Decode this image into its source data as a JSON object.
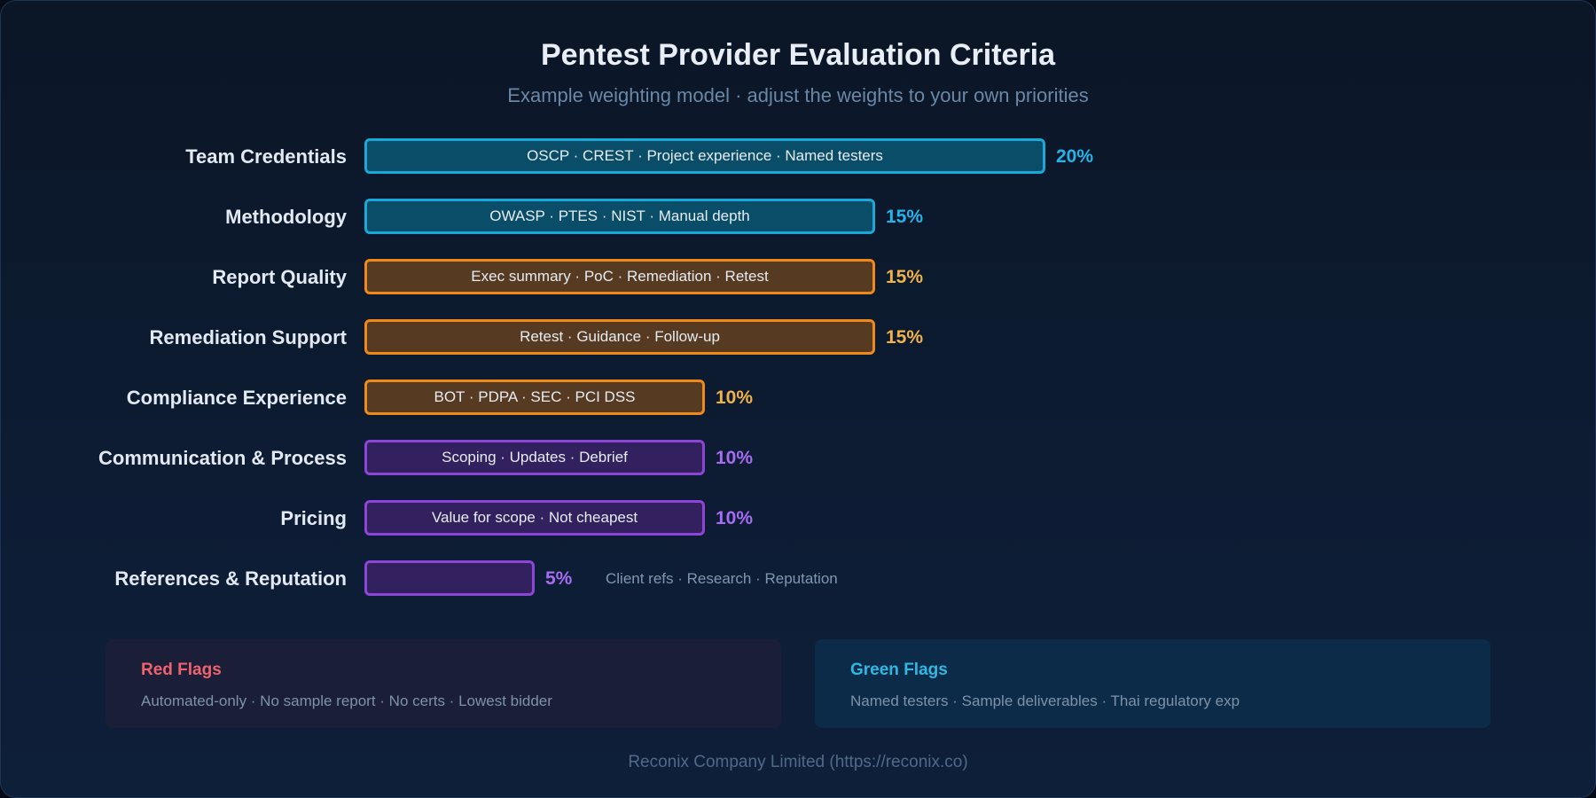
{
  "title": "Pentest Provider Evaluation Criteria",
  "subtitle": "Example weighting model · adjust the weights to your own priorities",
  "chart_data": {
    "type": "bar",
    "orientation": "horizontal",
    "categories": [
      "Team Credentials",
      "Methodology",
      "Report Quality",
      "Remediation Support",
      "Compliance Experience",
      "Communication & Process",
      "Pricing",
      "References & Reputation"
    ],
    "values": [
      20,
      15,
      15,
      15,
      10,
      10,
      10,
      5
    ],
    "value_labels": [
      "20%",
      "15%",
      "15%",
      "15%",
      "10%",
      "10%",
      "10%",
      "5%"
    ],
    "descriptions": [
      "OSCP · CREST · Project experience · Named testers",
      "OWASP · PTES · NIST · Manual depth",
      "Exec summary · PoC · Remediation · Retest",
      "Retest · Guidance · Follow-up",
      "BOT · PDPA · SEC · PCI DSS",
      "Scoping · Updates · Debrief",
      "Value for scope · Not cheapest",
      "Client refs · Research · Reputation"
    ],
    "color_groups": [
      "teal",
      "teal",
      "orange",
      "orange",
      "orange",
      "purple",
      "purple",
      "purple"
    ],
    "colors": {
      "teal": "#1aa8d8",
      "orange": "#ef8a19",
      "purple": "#8d45d8"
    },
    "xlim": [
      0,
      20
    ],
    "grid": false,
    "legend": "none"
  },
  "red_flags": {
    "title": "Red Flags",
    "text": "Automated-only · No sample report · No certs · Lowest bidder"
  },
  "green_flags": {
    "title": "Green Flags",
    "text": "Named testers · Sample deliverables · Thai regulatory exp"
  },
  "footer": "Reconix Company Limited (https://reconix.co)"
}
